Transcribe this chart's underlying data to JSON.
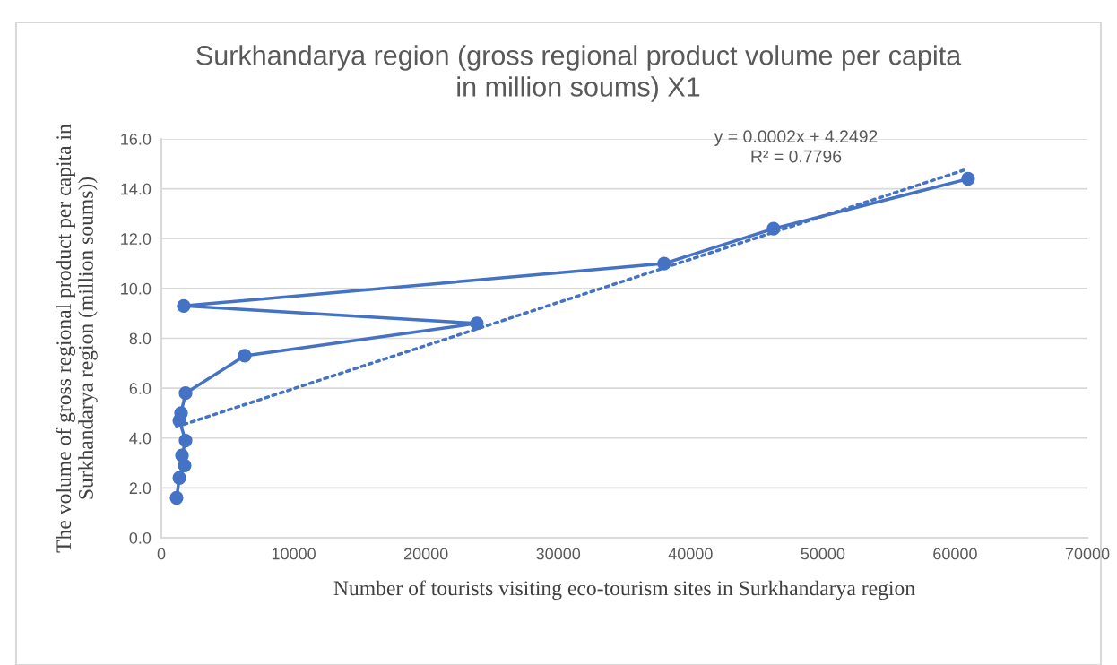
{
  "chart_data": {
    "type": "line",
    "title": "Surkhandarya region (gross regional product volume per capita\nin million soums) X1",
    "xlabel": "Number of tourists visiting eco-tourism sites in Surkhandarya region",
    "ylabel": "The volume of gross regional product per capita in\nSurkhandarya region (million soums))",
    "series": [
      {
        "color": "#4472c4",
        "marker": "circle",
        "line_style": "solid",
        "x": [
          1150,
          1360,
          1760,
          1560,
          1830,
          1360,
          1490,
          1830,
          6300,
          23850,
          1690,
          38000,
          46270,
          60980
        ],
        "values": [
          1.6,
          2.4,
          2.9,
          3.3,
          3.9,
          4.7,
          5.0,
          5.8,
          7.3,
          8.6,
          9.3,
          11.0,
          12.4,
          14.4
        ]
      },
      {
        "type": "line",
        "color": "#4472c4",
        "marker": "none",
        "line_style": "dotted",
        "x": [
          1150,
          60980
        ],
        "values": [
          4.45,
          14.8
        ]
      }
    ],
    "annotations": [
      "y = 0.0002x + 4.2492\nR² = 0.7796"
    ],
    "xlim": [
      0,
      70000
    ],
    "xticks": [
      0,
      10000,
      20000,
      30000,
      40000,
      50000,
      60000,
      70000
    ],
    "ylim": [
      0,
      16
    ],
    "yticks": [
      {
        "value": 0,
        "label": "0.0"
      },
      {
        "value": 2,
        "label": "2.0"
      },
      {
        "value": 4,
        "label": "4.0"
      },
      {
        "value": 6,
        "label": "6.0"
      },
      {
        "value": 8,
        "label": "8.0"
      },
      {
        "value": 10,
        "label": "10.0"
      },
      {
        "value": 12,
        "label": "12.0"
      },
      {
        "value": 14,
        "label": "14.0"
      },
      {
        "value": 16,
        "label": "16.0"
      }
    ],
    "grid": "y"
  }
}
